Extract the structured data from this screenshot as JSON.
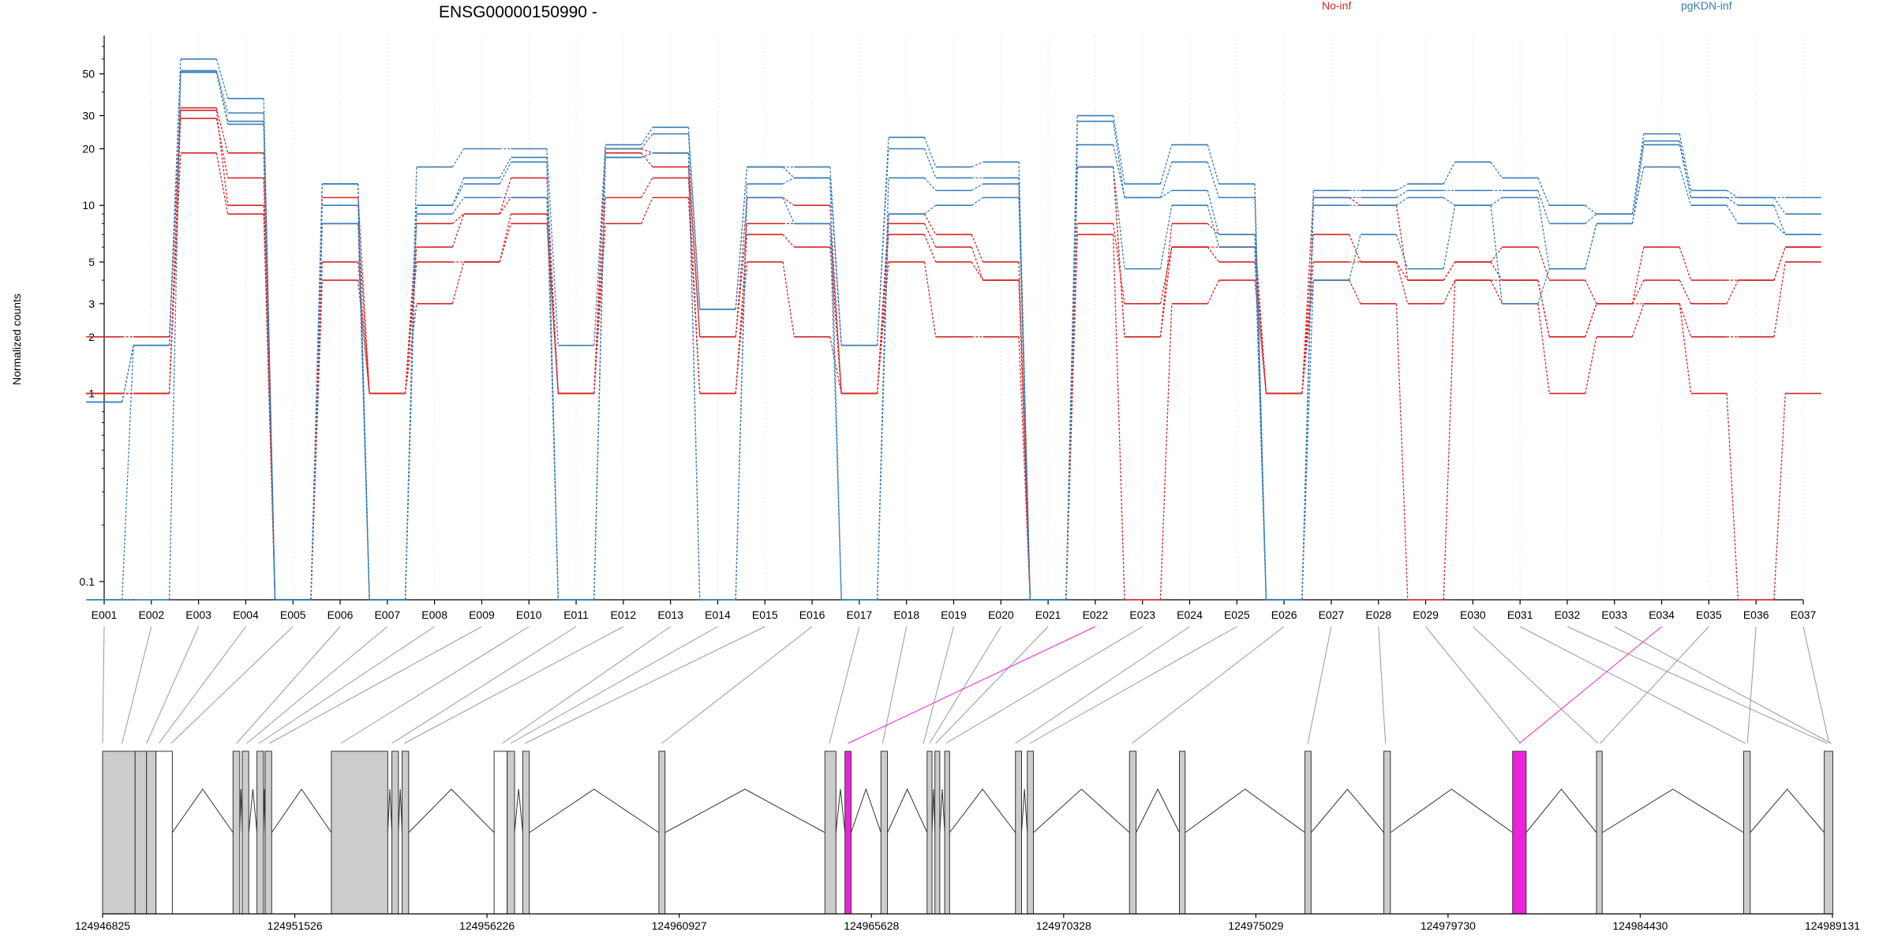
{
  "chart_data": {
    "type": "line",
    "title": "ENSG00000150990 -",
    "ylabel": "Normalized counts",
    "xlabel": "",
    "yscale": "log",
    "ylim": [
      0.08,
      80
    ],
    "yticks": [
      "0.1",
      "1",
      "2",
      "3",
      "5",
      "10",
      "20",
      "30",
      "50"
    ],
    "ytick_values": [
      0.1,
      1,
      2,
      3,
      5,
      10,
      20,
      30,
      50
    ],
    "legend_placement": "top",
    "grid": "vertical dotted",
    "categories": [
      "E001",
      "E002",
      "E003",
      "E004",
      "E005",
      "E006",
      "E007",
      "E008",
      "E009",
      "E010",
      "E011",
      "E012",
      "E013",
      "E014",
      "E015",
      "E016",
      "E017",
      "E018",
      "E019",
      "E020",
      "E021",
      "E022",
      "E023",
      "E024",
      "E025",
      "E026",
      "E027",
      "E028",
      "E029",
      "E030",
      "E031",
      "E032",
      "E033",
      "E034",
      "E035",
      "E036",
      "E037"
    ],
    "groups": [
      {
        "name": "No-inf",
        "color": "#d62728"
      },
      {
        "name": "pgKDN-inf",
        "color": "#377eb8"
      }
    ],
    "series": [
      {
        "group": "No-inf",
        "values": [
          2,
          2,
          33,
          19,
          0.08,
          11,
          1,
          8,
          9,
          14,
          1,
          20,
          19,
          2,
          11,
          10,
          1,
          9,
          7,
          5,
          0.08,
          16,
          2,
          8,
          7,
          1,
          11,
          10,
          4,
          5,
          6,
          4,
          3,
          6,
          4,
          4,
          6
        ]
      },
      {
        "group": "No-inf",
        "values": [
          1,
          1,
          29,
          14,
          0.08,
          8,
          1,
          6,
          9,
          11,
          1,
          19,
          16,
          2,
          8,
          8,
          1,
          8,
          6,
          4,
          0.08,
          16,
          2,
          6,
          6,
          1,
          7,
          5,
          4,
          5,
          4,
          2,
          3,
          4,
          3,
          4,
          6
        ]
      },
      {
        "group": "No-inf",
        "values": [
          1,
          1,
          32,
          10,
          0.08,
          5,
          1,
          5,
          5,
          9,
          1,
          11,
          14,
          1,
          7,
          6,
          1,
          7,
          5,
          4,
          0.08,
          8,
          3,
          6,
          5,
          1,
          5,
          5,
          3,
          4,
          4,
          2,
          3,
          3,
          2,
          2,
          5
        ]
      },
      {
        "group": "No-inf",
        "values": [
          1,
          1,
          19,
          9,
          0.08,
          4,
          1,
          3,
          5,
          8,
          1,
          8,
          11,
          1,
          5,
          2,
          1,
          5,
          2,
          2,
          0.08,
          7,
          0.08,
          3,
          4,
          1,
          4,
          3,
          0.08,
          4,
          3,
          1,
          2,
          3,
          1,
          0.08,
          1
        ]
      },
      {
        "group": "pgKDN-inf",
        "values": [
          0.08,
          1.8,
          60,
          37,
          0.08,
          13,
          0.08,
          16,
          20,
          20,
          1.8,
          21,
          26,
          2.8,
          16,
          16,
          1.8,
          23,
          16,
          17,
          0.08,
          30,
          13,
          21,
          13,
          0.08,
          12,
          12,
          13,
          17,
          14,
          10,
          9,
          24,
          12,
          11,
          11
        ]
      },
      {
        "group": "pgKDN-inf",
        "values": [
          0.9,
          1.8,
          52,
          31,
          0.08,
          13,
          0.08,
          10,
          14,
          18,
          0.08,
          20,
          24,
          2.8,
          16,
          14,
          1.8,
          20,
          14,
          14,
          0.08,
          28,
          11,
          17,
          11,
          0.08,
          11,
          11,
          12,
          12,
          12,
          8,
          9,
          22,
          11,
          11,
          9
        ]
      },
      {
        "group": "pgKDN-inf",
        "values": [
          0.9,
          1.8,
          51,
          28,
          0.08,
          10,
          0.08,
          10,
          13,
          17,
          0.08,
          18,
          19,
          0.08,
          13,
          14,
          0.08,
          14,
          12,
          13,
          0.08,
          21,
          11,
          12,
          7,
          0.08,
          10,
          10,
          11,
          10,
          11,
          4.6,
          8,
          21,
          11,
          10,
          7
        ]
      },
      {
        "group": "pgKDN-inf",
        "values": [
          0.08,
          0.08,
          51,
          27,
          0.08,
          8,
          0.08,
          9,
          11,
          11,
          0.08,
          18,
          19,
          0.08,
          11,
          8,
          0.08,
          9,
          10,
          11,
          0.08,
          16,
          4.6,
          10,
          6,
          0.08,
          4,
          7,
          4.6,
          10,
          3,
          4.6,
          8,
          16,
          10,
          8,
          7
        ]
      }
    ],
    "gene_model": {
      "coordinate_labels": [
        "124946825",
        "124951526",
        "124956226",
        "124960927",
        "124965628",
        "124970328",
        "124975029",
        "124979730",
        "124984430",
        "124989131"
      ],
      "coordinate_values": [
        124946825,
        124951526,
        124956226,
        124960927,
        124965628,
        124970328,
        124975029,
        124979730,
        124984430,
        124989131
      ],
      "exon_fill": "#cccccc",
      "highlight_fill": "#ee22dd",
      "highlighted_exons": [
        "E022",
        "E034"
      ],
      "exons": [
        {
          "start": 124946825,
          "end": 124947620,
          "fill": "grey"
        },
        {
          "start": 124947620,
          "end": 124947900,
          "fill": "grey"
        },
        {
          "start": 124947900,
          "end": 124948130,
          "fill": "grey"
        },
        {
          "start": 124948130,
          "end": 124948530,
          "fill": "white"
        },
        {
          "start": 124950015,
          "end": 124950180,
          "fill": "grey"
        },
        {
          "start": 124950240,
          "end": 124950400,
          "fill": "grey"
        },
        {
          "start": 124950600,
          "end": 124950760,
          "fill": "grey"
        },
        {
          "start": 124950800,
          "end": 124950960,
          "fill": "grey"
        },
        {
          "start": 124952420,
          "end": 124953800,
          "fill": "grey"
        },
        {
          "start": 124953900,
          "end": 124954060,
          "fill": "grey"
        },
        {
          "start": 124954150,
          "end": 124954310,
          "fill": "grey"
        },
        {
          "start": 124956400,
          "end": 124956720,
          "fill": "white"
        },
        {
          "start": 124956720,
          "end": 124956900,
          "fill": "grey"
        },
        {
          "start": 124957100,
          "end": 124957260,
          "fill": "grey"
        },
        {
          "start": 124960430,
          "end": 124960580,
          "fill": "grey"
        },
        {
          "start": 124964490,
          "end": 124964760,
          "fill": "grey"
        },
        {
          "start": 124964980,
          "end": 124965130,
          "fill": "magenta"
        },
        {
          "start": 124965860,
          "end": 124966020,
          "fill": "grey"
        },
        {
          "start": 124966990,
          "end": 124967110,
          "fill": "grey"
        },
        {
          "start": 124967180,
          "end": 124967300,
          "fill": "grey"
        },
        {
          "start": 124967420,
          "end": 124967540,
          "fill": "grey"
        },
        {
          "start": 124969150,
          "end": 124969300,
          "fill": "grey"
        },
        {
          "start": 124969440,
          "end": 124969590,
          "fill": "grey"
        },
        {
          "start": 124971940,
          "end": 124972100,
          "fill": "grey"
        },
        {
          "start": 124973160,
          "end": 124973300,
          "fill": "grey"
        },
        {
          "start": 124976230,
          "end": 124976380,
          "fill": "grey"
        },
        {
          "start": 124978160,
          "end": 124978320,
          "fill": "grey"
        },
        {
          "start": 124981310,
          "end": 124981640,
          "fill": "magenta"
        },
        {
          "start": 124983360,
          "end": 124983500,
          "fill": "grey"
        },
        {
          "start": 124986960,
          "end": 124987120,
          "fill": "grey"
        },
        {
          "start": 124988930,
          "end": 124989140,
          "fill": "grey"
        }
      ],
      "exon_links": [
        {
          "bin": "E001",
          "pos": 124946825
        },
        {
          "bin": "E002",
          "pos": 124947300
        },
        {
          "bin": "E003",
          "pos": 124947900
        },
        {
          "bin": "E004",
          "pos": 124948200
        },
        {
          "bin": "E005",
          "pos": 124948500
        },
        {
          "bin": "E006",
          "pos": 124950100
        },
        {
          "bin": "E007",
          "pos": 124950350
        },
        {
          "bin": "E008",
          "pos": 124950650
        },
        {
          "bin": "E009",
          "pos": 124950900
        },
        {
          "bin": "E010",
          "pos": 124952650
        },
        {
          "bin": "E011",
          "pos": 124953900
        },
        {
          "bin": "E012",
          "pos": 124954200
        },
        {
          "bin": "E013",
          "pos": 124956600
        },
        {
          "bin": "E014",
          "pos": 124956800
        },
        {
          "bin": "E015",
          "pos": 124957150
        },
        {
          "bin": "E016",
          "pos": 124960500
        },
        {
          "bin": "E017",
          "pos": 124964600
        },
        {
          "bin": "E018",
          "pos": 124965900
        },
        {
          "bin": "E019",
          "pos": 124966900
        },
        {
          "bin": "E020",
          "pos": 124967050
        },
        {
          "bin": "E021",
          "pos": 124967200
        },
        {
          "bin": "E022",
          "pos": 124965055
        },
        {
          "bin": "E023",
          "pos": 124967450
        },
        {
          "bin": "E024",
          "pos": 124969150
        },
        {
          "bin": "E025",
          "pos": 124969500
        },
        {
          "bin": "E026",
          "pos": 124972000
        },
        {
          "bin": "E027",
          "pos": 124976300
        },
        {
          "bin": "E028",
          "pos": 124978200
        },
        {
          "bin": "E029",
          "pos": 124981500
        },
        {
          "bin": "E030",
          "pos": 124983400
        },
        {
          "bin": "E031",
          "pos": 124987000
        },
        {
          "bin": "E032",
          "pos": 124989000
        },
        {
          "bin": "E033",
          "pos": 124989100
        },
        {
          "bin": "E034",
          "pos": 124981475
        },
        {
          "bin": "E035",
          "pos": 124983450
        },
        {
          "bin": "E036",
          "pos": 124987050
        },
        {
          "bin": "E037",
          "pos": 124989050
        }
      ]
    }
  }
}
